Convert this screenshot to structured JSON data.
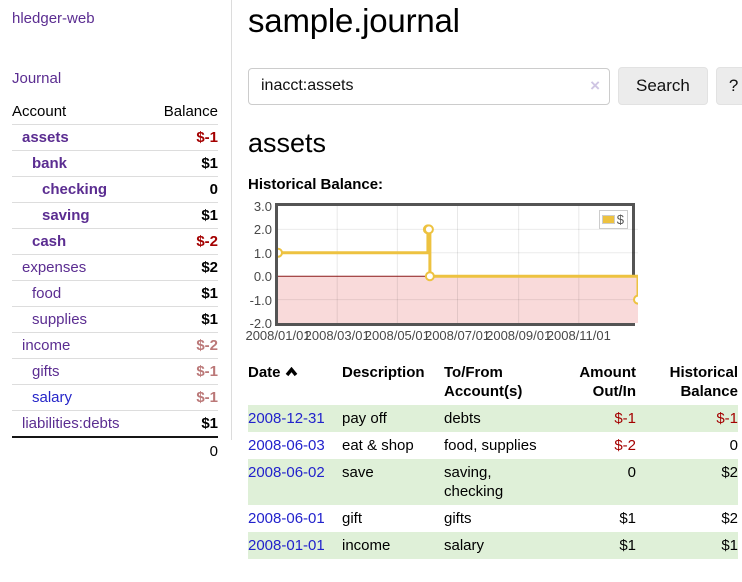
{
  "app": {
    "brand": "hledger-web"
  },
  "sidebar": {
    "journal_link": "Journal",
    "accounts_header": {
      "account": "Account",
      "balance": "Balance"
    },
    "accounts": [
      {
        "name": "assets",
        "balance": "$-1",
        "depth": 1,
        "bold": true,
        "neg": "strong"
      },
      {
        "name": "bank",
        "balance": "$1",
        "depth": 2,
        "bold": true,
        "neg": ""
      },
      {
        "name": "checking",
        "balance": "0",
        "depth": 3,
        "bold": true,
        "neg": ""
      },
      {
        "name": "saving",
        "balance": "$1",
        "depth": 3,
        "bold": true,
        "neg": ""
      },
      {
        "name": "cash",
        "balance": "$-2",
        "depth": 2,
        "bold": true,
        "neg": "strong"
      },
      {
        "name": "expenses",
        "balance": "$2",
        "depth": 1,
        "bold": false,
        "neg": ""
      },
      {
        "name": "food",
        "balance": "$1",
        "depth": 2,
        "bold": false,
        "neg": ""
      },
      {
        "name": "supplies",
        "balance": "$1",
        "depth": 2,
        "bold": false,
        "neg": ""
      },
      {
        "name": "income",
        "balance": "$-2",
        "depth": 1,
        "bold": false,
        "neg": "faded"
      },
      {
        "name": "gifts",
        "balance": "$-1",
        "depth": 2,
        "bold": false,
        "neg": "faded"
      },
      {
        "name": "salary",
        "balance": "$-1",
        "depth": 2,
        "bold": false,
        "neg": "faded",
        "blue": true
      },
      {
        "name": "liabilities:debts",
        "balance": "$1",
        "depth": 1,
        "bold": false,
        "neg": ""
      }
    ],
    "total": "0"
  },
  "header": {
    "title": "sample.journal"
  },
  "search": {
    "value": "inacct:assets",
    "clear_icon": "×",
    "button_label": "Search",
    "help_label": "?"
  },
  "account_page": {
    "title": "assets",
    "chart_label": "Historical Balance:"
  },
  "chart_data": {
    "type": "line",
    "step": true,
    "title": "Historical Balance",
    "xlim": [
      "2008-01-01",
      "2008-12-31"
    ],
    "ylim": [
      -2,
      3
    ],
    "y_ticks": [
      "3.0",
      "2.0",
      "1.0",
      "0.0",
      "-1.0",
      "-2.0"
    ],
    "x_ticks": [
      "2008/01/01",
      "2008/03/01",
      "2008/05/01",
      "2008/07/01",
      "2008/09/01",
      "2008/11/01"
    ],
    "grid": true,
    "legend_position": "top-right",
    "legend_label": "$",
    "series": [
      {
        "name": "$",
        "color": "#edc240",
        "points": [
          [
            "2008-01-01",
            1
          ],
          [
            "2008-06-01",
            2
          ],
          [
            "2008-06-02",
            2
          ],
          [
            "2008-06-03",
            0
          ],
          [
            "2008-12-31",
            -1
          ]
        ]
      }
    ],
    "negative_fill": "#f9dada",
    "zero_line_color": "#8b1a1a"
  },
  "register": {
    "columns": {
      "date": "Date",
      "description": "Description",
      "accounts": "To/From Account(s)",
      "amount": "Amount Out/In",
      "balance": "Historical Balance"
    },
    "rows": [
      {
        "date": "2008-12-31",
        "description": "pay off",
        "accounts": "debts",
        "amount": "$-1",
        "balance": "$-1"
      },
      {
        "date": "2008-06-03",
        "description": "eat & shop",
        "accounts": "food, supplies",
        "amount": "$-2",
        "balance": "0"
      },
      {
        "date": "2008-06-02",
        "description": "save",
        "accounts": "saving, checking",
        "amount": "0",
        "balance": "$2"
      },
      {
        "date": "2008-06-01",
        "description": "gift",
        "accounts": "gifts",
        "amount": "$1",
        "balance": "$2"
      },
      {
        "date": "2008-01-01",
        "description": "income",
        "accounts": "salary",
        "amount": "$1",
        "balance": "$1"
      }
    ]
  }
}
